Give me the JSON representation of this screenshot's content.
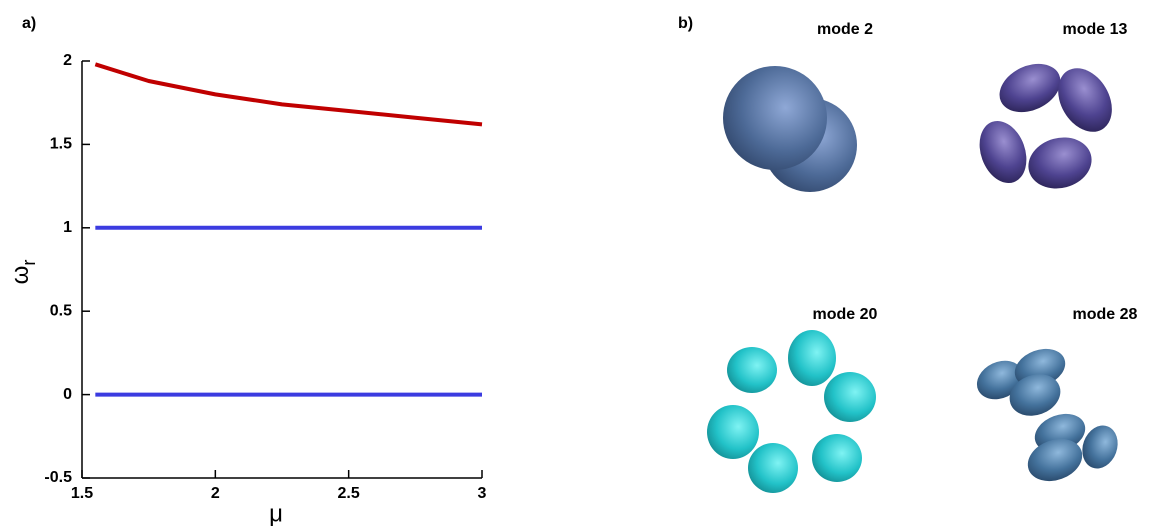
{
  "chart_data": {
    "type": "line",
    "panel_label": "a)",
    "x": [
      1.55,
      1.75,
      2,
      2.25,
      2.5,
      2.75,
      3
    ],
    "series": [
      {
        "color": "#c00000",
        "values": [
          1.98,
          1.88,
          1.8,
          1.74,
          1.7,
          1.66,
          1.62
        ]
      },
      {
        "color": "#3b3be0",
        "values": [
          1,
          1,
          1,
          1,
          1,
          1,
          1
        ]
      },
      {
        "color": "#3b3be0",
        "values": [
          0,
          0,
          0,
          0,
          0,
          0,
          0
        ]
      }
    ],
    "xlabel": "μ",
    "ylabel": {
      "symbol": "ω",
      "subscript": "r"
    },
    "xlim": [
      1.5,
      3
    ],
    "xticks": [
      1.5,
      2,
      2.5,
      3
    ],
    "ylim": [
      -0.5,
      2
    ],
    "yticks": [
      -0.5,
      0,
      0.5,
      1,
      1.5,
      2
    ]
  },
  "panel_b": {
    "label": "b)",
    "modes": [
      "mode 2",
      "mode 13",
      "mode 20",
      "mode 28"
    ]
  }
}
